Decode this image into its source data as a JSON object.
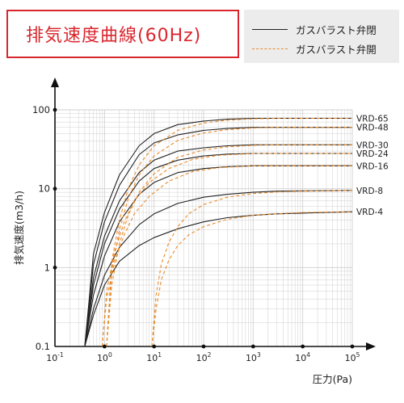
{
  "title": "排気速度曲線(60Hz)",
  "legend": [
    {
      "label": "ガスバラスト弁閉",
      "style": "solid",
      "color": "#222222"
    },
    {
      "label": "ガスバラスト弁開",
      "style": "dashed",
      "color": "#e88a2a"
    }
  ],
  "chart_data": {
    "type": "line",
    "title": "排気速度曲線(60Hz)",
    "xlabel": "圧力(Pa)",
    "ylabel": "排気速度(m3/h)",
    "xscale": "log",
    "yscale": "log",
    "xlim": [
      0.1,
      100000
    ],
    "ylim": [
      0.1,
      100
    ],
    "grid": true,
    "x_ticks": [
      {
        "base": "10",
        "exp": "-1"
      },
      {
        "base": "10",
        "exp": "0"
      },
      {
        "base": "10",
        "exp": "1"
      },
      {
        "base": "10",
        "exp": "2"
      },
      {
        "base": "10",
        "exp": "3"
      },
      {
        "base": "10",
        "exp": "4"
      },
      {
        "base": "10",
        "exp": "5"
      }
    ],
    "y_ticks": [
      "0.1",
      "1",
      "10",
      "100"
    ],
    "series": [
      {
        "name": "VRD-65",
        "style": "solid",
        "x": [
          0.4,
          0.6,
          1,
          2,
          5,
          10,
          30,
          100,
          300,
          1000,
          3000,
          100000
        ],
        "y": [
          0.1,
          1.5,
          5,
          15,
          35,
          50,
          65,
          72,
          76,
          78,
          78,
          78
        ]
      },
      {
        "name": "VRD-48",
        "style": "solid",
        "x": [
          0.4,
          0.6,
          1,
          2,
          5,
          10,
          30,
          100,
          300,
          1000,
          3000,
          100000
        ],
        "y": [
          0.1,
          1.1,
          3.8,
          11,
          27,
          38,
          48,
          55,
          58,
          60,
          60,
          60
        ]
      },
      {
        "name": "VRD-30",
        "style": "solid",
        "x": [
          0.4,
          0.6,
          1,
          2,
          5,
          10,
          30,
          100,
          300,
          1000,
          3000,
          100000
        ],
        "y": [
          0.1,
          0.75,
          2.5,
          7,
          16,
          23,
          30,
          33,
          35,
          36,
          36,
          36
        ]
      },
      {
        "name": "VRD-24",
        "style": "solid",
        "x": [
          0.4,
          0.6,
          1,
          2,
          5,
          10,
          30,
          100,
          300,
          1000,
          3000,
          100000
        ],
        "y": [
          0.1,
          0.6,
          2,
          5.5,
          12.5,
          18,
          23,
          26,
          27.5,
          28,
          28,
          28
        ]
      },
      {
        "name": "VRD-16",
        "style": "solid",
        "x": [
          0.4,
          0.6,
          1,
          2,
          5,
          10,
          30,
          100,
          300,
          1000,
          3000,
          100000
        ],
        "y": [
          0.1,
          0.45,
          1.4,
          3.8,
          8.5,
          12,
          16,
          18,
          19,
          19.5,
          19.5,
          19.5
        ]
      },
      {
        "name": "VRD-8",
        "style": "solid",
        "x": [
          0.4,
          0.6,
          1,
          2,
          5,
          10,
          30,
          100,
          300,
          1000,
          3000,
          100000
        ],
        "y": [
          0.1,
          0.3,
          0.8,
          1.8,
          3.5,
          4.8,
          6.5,
          7.8,
          8.5,
          9,
          9.3,
          9.5
        ]
      },
      {
        "name": "VRD-4",
        "style": "solid",
        "x": [
          0.4,
          0.6,
          1,
          2,
          5,
          10,
          30,
          100,
          300,
          1000,
          3000,
          100000
        ],
        "y": [
          0.1,
          0.25,
          0.6,
          1.2,
          1.9,
          2.4,
          3.1,
          3.8,
          4.3,
          4.6,
          4.8,
          5.1
        ]
      },
      {
        "name": "VRD-65",
        "style": "dashed",
        "x": [
          1.1,
          1.4,
          2,
          3,
          5,
          10,
          30,
          100,
          300,
          1000,
          3000,
          100000
        ],
        "y": [
          0.1,
          1.2,
          4,
          10,
          20,
          35,
          55,
          68,
          74,
          77,
          78,
          78
        ]
      },
      {
        "name": "VRD-48",
        "style": "dashed",
        "x": [
          1.1,
          1.4,
          2,
          3,
          5,
          10,
          30,
          100,
          300,
          1000,
          3000,
          100000
        ],
        "y": [
          0.1,
          0.9,
          3,
          7.5,
          15,
          26,
          41,
          51,
          56,
          59,
          60,
          60
        ]
      },
      {
        "name": "VRD-30",
        "style": "dashed",
        "x": [
          1.1,
          1.4,
          2,
          3,
          5,
          10,
          30,
          100,
          300,
          1000,
          3000,
          100000
        ],
        "y": [
          0.1,
          0.6,
          2,
          4.6,
          9,
          15.5,
          25,
          31,
          34,
          35.5,
          36,
          36
        ]
      },
      {
        "name": "VRD-24",
        "style": "dashed",
        "x": [
          0.9,
          1.1,
          1.6,
          2.5,
          4,
          8,
          20,
          60,
          200,
          1000,
          3000,
          100000
        ],
        "y": [
          0.1,
          0.5,
          1.6,
          3.8,
          7,
          12,
          18,
          23.5,
          26.5,
          28,
          28,
          28
        ]
      },
      {
        "name": "VRD-16",
        "style": "dashed",
        "x": [
          0.9,
          1.1,
          1.6,
          2.5,
          4,
          8,
          20,
          60,
          200,
          1000,
          3000,
          100000
        ],
        "y": [
          0.1,
          0.4,
          1.2,
          2.6,
          4.8,
          8,
          12.5,
          16.5,
          18.5,
          19.5,
          19.5,
          19.5
        ]
      },
      {
        "name": "VRD-8",
        "style": "dashed",
        "x": [
          9,
          11,
          14,
          20,
          30,
          50,
          100,
          300,
          1000,
          3000,
          10000,
          100000
        ],
        "y": [
          0.1,
          0.45,
          1.1,
          2.1,
          3.3,
          4.8,
          6.3,
          7.8,
          8.7,
          9.1,
          9.3,
          9.5
        ]
      },
      {
        "name": "VRD-4",
        "style": "dashed",
        "x": [
          9,
          11,
          14,
          20,
          30,
          50,
          100,
          300,
          1000,
          3000,
          10000,
          100000
        ],
        "y": [
          0.1,
          0.3,
          0.7,
          1.25,
          1.9,
          2.6,
          3.3,
          4.1,
          4.6,
          4.8,
          5.0,
          5.1
        ]
      }
    ],
    "end_labels": [
      "VRD-65",
      "VRD-48",
      "VRD-30",
      "VRD-24",
      "VRD-16",
      "VRD-8",
      "VRD-4"
    ],
    "colors": {
      "solid": "#222222",
      "dashed": "#e88a2a",
      "grid": "#cfcfcf",
      "axis": "#111111"
    }
  }
}
